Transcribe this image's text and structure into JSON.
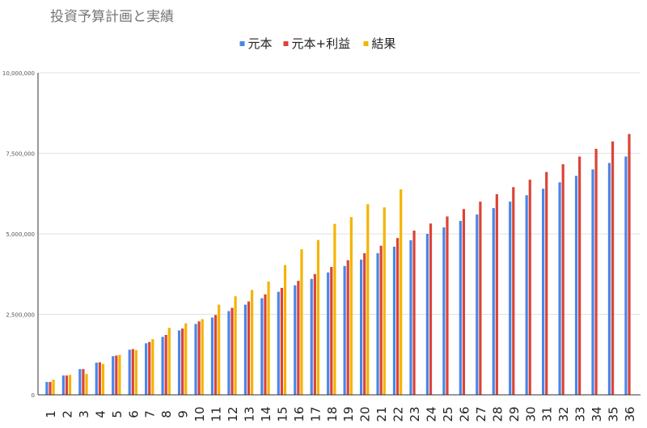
{
  "chart_data": {
    "type": "bar",
    "title": "投資予算計画と実績",
    "xlabel": "",
    "ylabel": "",
    "legend_position": "top",
    "grid": true,
    "ylim": [
      0,
      10000000
    ],
    "y_ticks": [
      0,
      2500000,
      5000000,
      7500000,
      10000000
    ],
    "y_tick_labels": [
      "0",
      "2,500,000",
      "5,000,000",
      "7,500,000",
      "10,000,000"
    ],
    "categories": [
      "1",
      "2",
      "3",
      "4",
      "5",
      "6",
      "7",
      "8",
      "9",
      "10",
      "11",
      "12",
      "13",
      "14",
      "15",
      "16",
      "17",
      "18",
      "19",
      "20",
      "21",
      "22",
      "23",
      "24",
      "25",
      "26",
      "27",
      "28",
      "29",
      "30",
      "31",
      "32",
      "33",
      "34",
      "35",
      "36"
    ],
    "series": [
      {
        "name": "元本",
        "color": "#4a86e8",
        "values": [
          400000,
          600000,
          800000,
          1000000,
          1200000,
          1400000,
          1600000,
          1800000,
          2000000,
          2200000,
          2400000,
          2600000,
          2800000,
          3000000,
          3200000,
          3400000,
          3600000,
          3800000,
          4000000,
          4200000,
          4400000,
          4600000,
          4800000,
          5000000,
          5200000,
          5400000,
          5600000,
          5800000,
          6000000,
          6200000,
          6400000,
          6600000,
          6800000,
          7000000,
          7200000,
          7400000
        ]
      },
      {
        "name": "元本+利益",
        "color": "#db4437",
        "values": [
          400000,
          600000,
          800000,
          1010000,
          1220000,
          1420000,
          1640000,
          1860000,
          2060000,
          2280000,
          2480000,
          2700000,
          2900000,
          3120000,
          3320000,
          3540000,
          3750000,
          3970000,
          4180000,
          4400000,
          4630000,
          4870000,
          5100000,
          5320000,
          5540000,
          5770000,
          6000000,
          6230000,
          6450000,
          6680000,
          6920000,
          7160000,
          7400000,
          7640000,
          7870000,
          8100000
        ]
      },
      {
        "name": "結果",
        "color": "#f4b400",
        "values": [
          470000,
          620000,
          650000,
          960000,
          1240000,
          1390000,
          1730000,
          2080000,
          2220000,
          2350000,
          2800000,
          3060000,
          3260000,
          3520000,
          4030000,
          4520000,
          4810000,
          5310000,
          5520000,
          5920000,
          5820000,
          6380000,
          null,
          null,
          null,
          null,
          null,
          null,
          null,
          null,
          null,
          null,
          null,
          null,
          null,
          null
        ]
      }
    ]
  }
}
